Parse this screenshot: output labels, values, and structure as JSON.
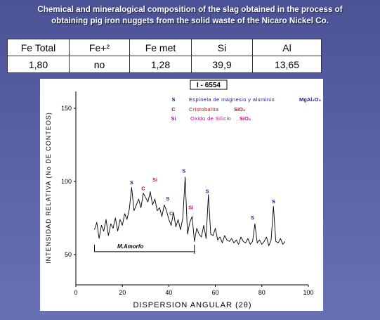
{
  "slide": {
    "title_line1": "Chemical and mineralogical composition of the slag obtained in the process of",
    "title_line2": "obtaining pig iron nuggets from the solid waste of the Nicaro Nickel Co."
  },
  "composition_table": {
    "headers": [
      "Fe Total",
      "Fe+²",
      "Fe met",
      "Si",
      "Al"
    ],
    "values": [
      "1,80",
      "no",
      "1,28",
      "39,9",
      "13,65"
    ]
  },
  "colors": {
    "background": "#5a60a6",
    "spinel_marker": "#1a1aa0",
    "cristobalite_marker": "#b01515",
    "silicon_oxide_marker": "#b8148a",
    "pattern_line": "#000000"
  },
  "chart_data": {
    "type": "line",
    "title": "",
    "sample_id": "I - 6554",
    "xlabel": "DISPERSION ANGULAR (2θ)",
    "ylabel": "INTENSIDAD RELATIVA (No DE CONTEOS)",
    "xlim": [
      0,
      100
    ],
    "ylim": [
      30,
      160
    ],
    "x_ticks": [
      0,
      20,
      40,
      60,
      80,
      100
    ],
    "y_ticks": [
      50,
      100,
      150
    ],
    "legend": [
      {
        "symbol": "S",
        "label": "Espinela de magnesio y aluminio",
        "formula": "MgAl₂O₄",
        "color": "#1a1aa0"
      },
      {
        "symbol": "C",
        "label": "Cristobalita",
        "formula": "SiO₂",
        "color": "#b01515"
      },
      {
        "symbol": "Si",
        "label": "Oxido de Silicio",
        "formula": "SiO₂",
        "color": "#b8148a"
      }
    ],
    "amorphous_band": {
      "label": "M.Amorfo",
      "x_start": 8,
      "x_end": 51,
      "y": 52
    },
    "peak_labels": [
      {
        "symbol": "S",
        "x": 24,
        "y": 98
      },
      {
        "symbol": "C",
        "x": 29,
        "y": 94
      },
      {
        "symbol": "Si",
        "x": 34,
        "y": 100
      },
      {
        "symbol": "S",
        "x": 39.5,
        "y": 87
      },
      {
        "symbol": "C",
        "x": 41,
        "y": 77
      },
      {
        "symbol": "S",
        "x": 46.5,
        "y": 106
      },
      {
        "symbol": "Si",
        "x": 49.5,
        "y": 81
      },
      {
        "symbol": "S",
        "x": 56.5,
        "y": 92
      },
      {
        "symbol": "S",
        "x": 76,
        "y": 74
      },
      {
        "symbol": "S",
        "x": 85,
        "y": 85
      }
    ],
    "series": [
      {
        "x": [
          8,
          9,
          10,
          11,
          12,
          13,
          14,
          15,
          16,
          17,
          18,
          19,
          20,
          21,
          22,
          23,
          24,
          25,
          26,
          27,
          28,
          29,
          30,
          31,
          32,
          33,
          34,
          35,
          36,
          37,
          38,
          39,
          40,
          41,
          42,
          43,
          44,
          45,
          46,
          47,
          48,
          49,
          50,
          51,
          52,
          53,
          54,
          55,
          56,
          57,
          58,
          59,
          60,
          61,
          62,
          63,
          64,
          65,
          66,
          67,
          68,
          69,
          70,
          71,
          72,
          73,
          74,
          75,
          76,
          77,
          78,
          79,
          80,
          81,
          82,
          83,
          84,
          85,
          86,
          87,
          88,
          89,
          90
        ],
        "values": [
          67,
          72,
          61,
          70,
          66,
          74,
          63,
          71,
          68,
          75,
          66,
          74,
          70,
          78,
          74,
          81,
          96,
          80,
          84,
          88,
          82,
          92,
          89,
          86,
          93,
          84,
          88,
          80,
          82,
          76,
          84,
          80,
          74,
          70,
          79,
          69,
          74,
          67,
          75,
          103,
          64,
          72,
          76,
          59,
          68,
          64,
          62,
          70,
          61,
          91,
          64,
          63,
          68,
          60,
          62,
          58,
          63,
          60,
          59,
          61,
          58,
          60,
          57,
          62,
          59,
          58,
          61,
          57,
          59,
          71,
          58,
          60,
          57,
          59,
          62,
          56,
          60,
          83,
          59,
          58,
          61,
          57,
          59
        ]
      }
    ]
  }
}
